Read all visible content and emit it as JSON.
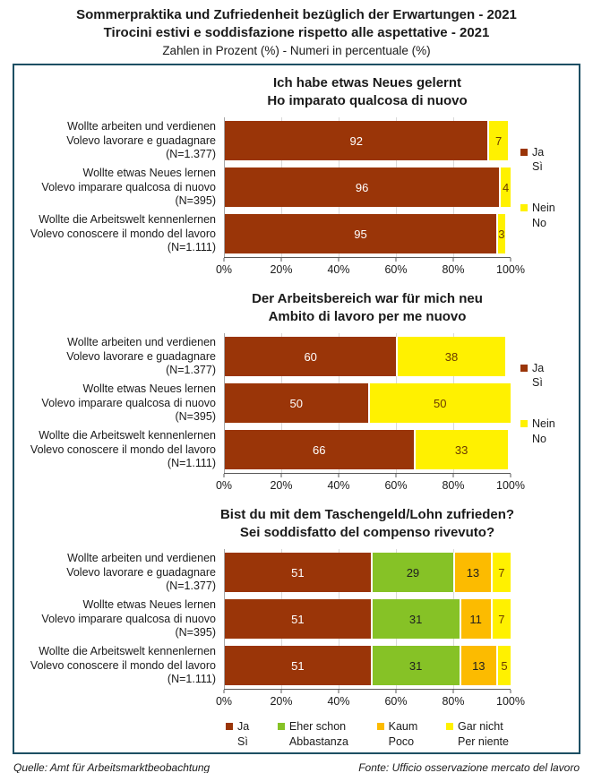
{
  "header": {
    "title_de": "Sommerpraktika und Zufriedenheit bezüglich der Erwartungen - 2021",
    "title_it": "Tirocini estivi e soddisfazione rispetto alle aspettative - 2021",
    "subtitle": "Zahlen in Prozent (%) - Numeri in percentuale (%)"
  },
  "palette": {
    "ja_brown": "#9A3508",
    "nein_yellow": "#FFF100",
    "eher_green": "#86C226",
    "kaum_orange": "#FCBB00",
    "box_border": "#1D4F63",
    "gridline": "#D9D9D9",
    "axis_line": "#595959"
  },
  "footer": {
    "source_de": "Quelle: Amt für Arbeitsmarktbeobachtung",
    "source_it": "Fonte: Ufficio osservazione mercato del lavoro"
  },
  "chart_data": [
    {
      "type": "bar",
      "orientation": "horizontal",
      "stacked": true,
      "grid": true,
      "title": [
        "Ich habe etwas Neues gelernt",
        "Ho imparato qualcosa di nuovo"
      ],
      "categories": [
        [
          "Wollte arbeiten und verdienen",
          "Volevo lavorare e guadagnare",
          "(N=1.377)"
        ],
        [
          "Wollte etwas Neues lernen",
          "Volevo imparare qualcosa di nuovo",
          "(N=395)"
        ],
        [
          "Wollte die Arbeitswelt kennenlernen",
          "Volevo conoscere il mondo del lavoro",
          "(N=1.111)"
        ]
      ],
      "series": [
        {
          "name": [
            "Ja",
            "Sì"
          ],
          "color": "#9A3508",
          "value_color": "#FFFFFF",
          "values": [
            92,
            96,
            95
          ]
        },
        {
          "name": [
            "Nein",
            "No"
          ],
          "color": "#FFF100",
          "value_color": "#6B3A00",
          "values": [
            7,
            4,
            3
          ]
        }
      ],
      "xlim": [
        0,
        100
      ],
      "ticks": [
        "0%",
        "20%",
        "40%",
        "60%",
        "80%",
        "100%"
      ],
      "legend_position": "right"
    },
    {
      "type": "bar",
      "orientation": "horizontal",
      "stacked": true,
      "grid": true,
      "title": [
        "Der Arbeitsbereich war für mich neu",
        "Ambito di lavoro per me nuovo"
      ],
      "categories": [
        [
          "Wollte arbeiten und verdienen",
          "Volevo lavorare e guadagnare",
          "(N=1.377)"
        ],
        [
          "Wollte etwas Neues lernen",
          "Volevo imparare qualcosa di nuovo",
          "(N=395)"
        ],
        [
          "Wollte die Arbeitswelt kennenlernen",
          "Volevo conoscere il mondo del lavoro",
          "(N=1.111)"
        ]
      ],
      "series": [
        {
          "name": [
            "Ja",
            "Sì"
          ],
          "color": "#9A3508",
          "value_color": "#FFFFFF",
          "values": [
            60,
            50,
            66
          ]
        },
        {
          "name": [
            "Nein",
            "No"
          ],
          "color": "#FFF100",
          "value_color": "#6B3A00",
          "values": [
            38,
            50,
            33
          ]
        }
      ],
      "xlim": [
        0,
        100
      ],
      "ticks": [
        "0%",
        "20%",
        "40%",
        "60%",
        "80%",
        "100%"
      ],
      "legend_position": "right"
    },
    {
      "type": "bar",
      "orientation": "horizontal",
      "stacked": true,
      "grid": true,
      "title": [
        "Bist du mit dem Taschengeld/Lohn zufrieden?",
        "Sei soddisfatto del compenso rivevuto?"
      ],
      "categories": [
        [
          "Wollte arbeiten und verdienen",
          "Volevo lavorare e guadagnare",
          "(N=1.377)"
        ],
        [
          "Wollte etwas Neues lernen",
          "Volevo imparare qualcosa di nuovo",
          "(N=395)"
        ],
        [
          "Wollte die Arbeitswelt kennenlernen",
          "Volevo conoscere il mondo del lavoro",
          "(N=1.111)"
        ]
      ],
      "series": [
        {
          "name": [
            "Ja",
            "Sì"
          ],
          "color": "#9A3508",
          "value_color": "#FFFFFF",
          "values": [
            51,
            51,
            51
          ]
        },
        {
          "name": [
            "Eher schon",
            "Abbastanza"
          ],
          "color": "#86C226",
          "value_color": "#1F1F1F",
          "values": [
            29,
            31,
            31
          ]
        },
        {
          "name": [
            "Kaum",
            "Poco"
          ],
          "color": "#FCBB00",
          "value_color": "#1F1F1F",
          "values": [
            13,
            11,
            13
          ]
        },
        {
          "name": [
            "Gar nicht",
            "Per niente"
          ],
          "color": "#FFF100",
          "value_color": "#6B3A00",
          "values": [
            7,
            7,
            5
          ]
        }
      ],
      "xlim": [
        0,
        100
      ],
      "ticks": [
        "0%",
        "20%",
        "40%",
        "60%",
        "80%",
        "100%"
      ],
      "legend_position": "bottom"
    }
  ]
}
